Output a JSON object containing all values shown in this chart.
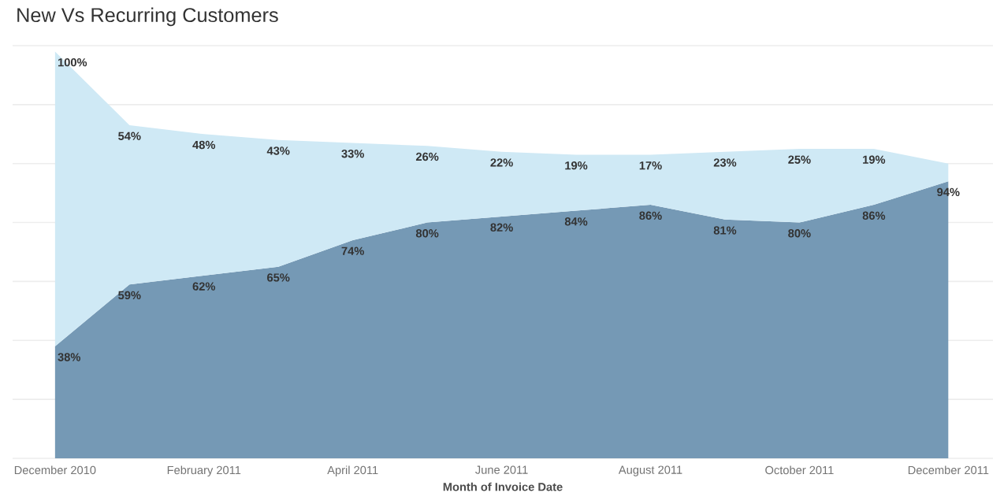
{
  "chart_data": {
    "type": "area",
    "title": "New Vs Recurring Customers",
    "xlabel": "Month of Invoice Date",
    "stacked": true,
    "categories": [
      "December 2010",
      null,
      "February 2011",
      null,
      "April 2011",
      null,
      "June 2011",
      null,
      "August 2011",
      null,
      "October 2011",
      null,
      "December 2011"
    ],
    "series": [
      {
        "color": "#7599b5",
        "values": [
          38,
          59,
          62,
          65,
          74,
          80,
          82,
          84,
          86,
          81,
          80,
          86,
          94
        ],
        "value_labels": [
          "38%",
          "59%",
          "62%",
          "65%",
          "74%",
          "80%",
          "82%",
          "84%",
          "86%",
          "81%",
          "80%",
          "86%",
          "94%"
        ]
      },
      {
        "color": "#cfe9f5",
        "values": [
          100,
          54,
          48,
          43,
          33,
          26,
          22,
          19,
          17,
          23,
          25,
          19,
          6
        ],
        "value_labels": [
          "100%",
          "54%",
          "48%",
          "43%",
          "33%",
          "26%",
          "22%",
          "19%",
          "17%",
          "23%",
          "25%",
          "19%",
          null
        ]
      }
    ],
    "ylim": [
      0,
      140
    ],
    "yticks": [
      {
        "value": 0,
        "label": null
      },
      {
        "value": 20,
        "label": null
      },
      {
        "value": 40,
        "label": null
      },
      {
        "value": 60,
        "label": null
      },
      {
        "value": 80,
        "label": null
      },
      {
        "value": 100,
        "label": null
      },
      {
        "value": 120,
        "label": null
      },
      {
        "value": 140,
        "label": null
      }
    ],
    "grid": "y",
    "tick_labels": "x"
  }
}
